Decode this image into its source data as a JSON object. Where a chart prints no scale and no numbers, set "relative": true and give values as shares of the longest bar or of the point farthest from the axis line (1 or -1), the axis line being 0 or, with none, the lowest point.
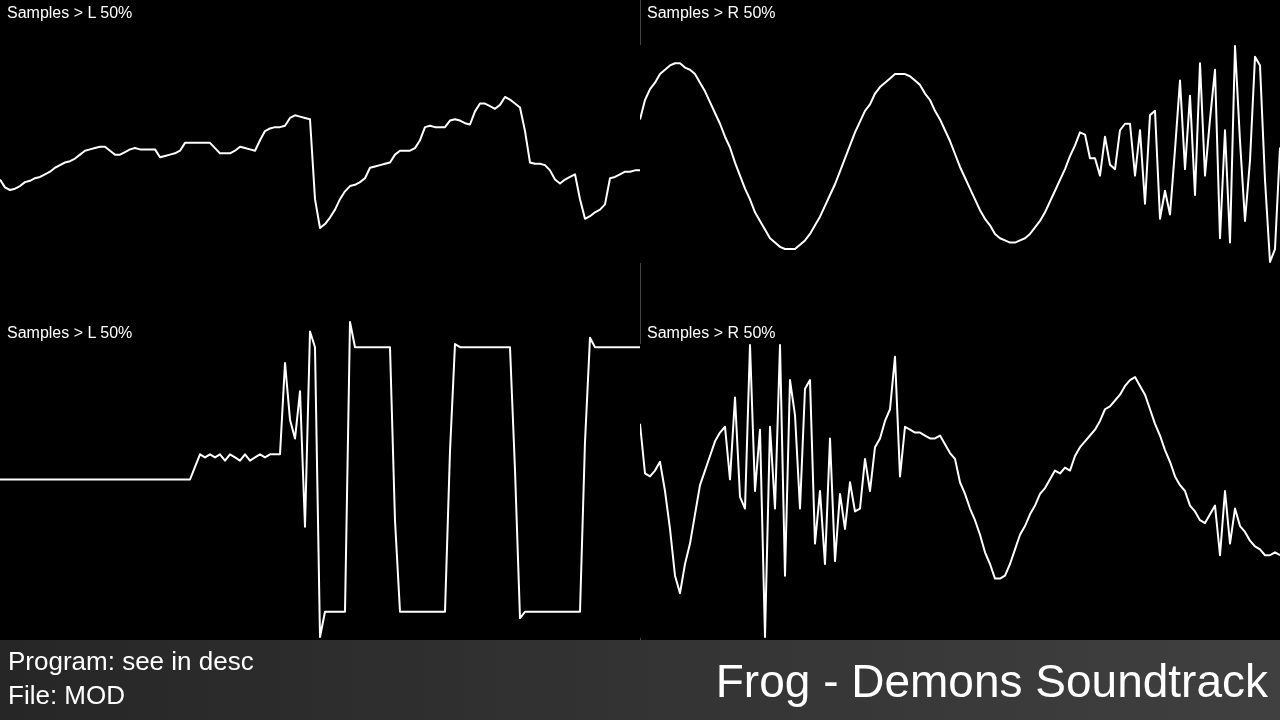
{
  "chart_data": [
    {
      "type": "line",
      "title": "Samples > L 50%",
      "relative": true,
      "categories": [
        null,
        null,
        null,
        null,
        null,
        null,
        null,
        null,
        null,
        null,
        null,
        null,
        null,
        null,
        null,
        null,
        null,
        null,
        null,
        null,
        null,
        null,
        null,
        null,
        null,
        null,
        null,
        null,
        null,
        null,
        null,
        null,
        null,
        null,
        null,
        null,
        null,
        null,
        null,
        null,
        null,
        null,
        null,
        null,
        null,
        null,
        null,
        null,
        null,
        null,
        null,
        null,
        null,
        null,
        null,
        null,
        null,
        null,
        null,
        null,
        null,
        null,
        null,
        null,
        null,
        null,
        null,
        null,
        null,
        null,
        null,
        null,
        null,
        null,
        null,
        null,
        null,
        null,
        null,
        null,
        null,
        null,
        null,
        null,
        null,
        null,
        null,
        null,
        null,
        null,
        null,
        null,
        null,
        null,
        null,
        null,
        null,
        null,
        null,
        null,
        null,
        null,
        null,
        null,
        null,
        null,
        null,
        null,
        null,
        null,
        null,
        null,
        null,
        null,
        null,
        null,
        null,
        null,
        null,
        null,
        null,
        null,
        null,
        null,
        null,
        null,
        null,
        null,
        null
      ],
      "series": [
        {
          "color": "#ffffff",
          "values": [
            0.37,
            0.31,
            0.29,
            0.3,
            0.32,
            0.35,
            0.36,
            0.38,
            0.39,
            0.41,
            0.43,
            0.46,
            0.48,
            0.5,
            0.51,
            0.53,
            0.56,
            0.59,
            0.6,
            0.61,
            0.62,
            0.62,
            0.59,
            0.56,
            0.56,
            0.58,
            0.6,
            0.61,
            0.6,
            0.6,
            0.6,
            0.6,
            0.54,
            0.55,
            0.56,
            0.57,
            0.59,
            0.65,
            0.65,
            0.65,
            0.65,
            0.65,
            0.65,
            0.61,
            0.57,
            0.57,
            0.57,
            0.59,
            0.62,
            0.61,
            0.6,
            0.59,
            0.67,
            0.74,
            0.76,
            0.77,
            0.77,
            0.78,
            0.84,
            0.86,
            0.85,
            0.84,
            0.83,
            0.22,
            0,
            0.03,
            0.08,
            0.14,
            0.22,
            0.28,
            0.32,
            0.33,
            0.35,
            0.38,
            0.46,
            0.47,
            0.48,
            0.49,
            0.5,
            0.56,
            0.59,
            0.59,
            0.59,
            0.61,
            0.67,
            0.77,
            0.78,
            0.77,
            0.77,
            0.77,
            0.82,
            0.83,
            0.82,
            0.8,
            0.79,
            0.89,
            0.95,
            0.95,
            0.93,
            0.91,
            0.94,
            1,
            0.98,
            0.95,
            0.92,
            0.74,
            0.5,
            0.49,
            0.49,
            0.48,
            0.44,
            0.37,
            0.34,
            0.37,
            0.39,
            0.41,
            0.22,
            0.07,
            0.09,
            0.12,
            0.14,
            0.18,
            0.38,
            0.39,
            0.41,
            0.43,
            0.43,
            0.44,
            0.44
          ]
        }
      ]
    },
    {
      "type": "line",
      "title": "Samples > R 50%",
      "relative": true,
      "categories": [
        null,
        null,
        null,
        null,
        null,
        null,
        null,
        null,
        null,
        null,
        null,
        null,
        null,
        null,
        null,
        null,
        null,
        null,
        null,
        null,
        null,
        null,
        null,
        null,
        null,
        null,
        null,
        null,
        null,
        null,
        null,
        null,
        null,
        null,
        null,
        null,
        null,
        null,
        null,
        null,
        null,
        null,
        null,
        null,
        null,
        null,
        null,
        null,
        null,
        null,
        null,
        null,
        null,
        null,
        null,
        null,
        null,
        null,
        null,
        null,
        null,
        null,
        null,
        null,
        null,
        null,
        null,
        null,
        null,
        null,
        null,
        null,
        null,
        null,
        null,
        null,
        null,
        null,
        null,
        null,
        null,
        null,
        null,
        null,
        null,
        null,
        null,
        null,
        null,
        null,
        null,
        null,
        null,
        null,
        null,
        null,
        null,
        null,
        null,
        null,
        null,
        null,
        null,
        null,
        null,
        null,
        null,
        null,
        null,
        null,
        null,
        null,
        null,
        null,
        null,
        null,
        null,
        null,
        null,
        null,
        null,
        null,
        null,
        null,
        null,
        null,
        null,
        null,
        null
      ],
      "series": [
        {
          "color": "#ffffff",
          "values": [
            0.66,
            0.75,
            0.8,
            0.83,
            0.87,
            0.89,
            0.91,
            0.92,
            0.92,
            0.9,
            0.89,
            0.87,
            0.83,
            0.79,
            0.74,
            0.69,
            0.64,
            0.58,
            0.53,
            0.46,
            0.4,
            0.34,
            0.29,
            0.23,
            0.19,
            0.15,
            0.11,
            0.09,
            0.07,
            0.06,
            0.06,
            0.06,
            0.08,
            0.1,
            0.13,
            0.17,
            0.21,
            0.26,
            0.31,
            0.36,
            0.42,
            0.48,
            0.54,
            0.6,
            0.65,
            0.7,
            0.73,
            0.78,
            0.81,
            0.83,
            0.85,
            0.87,
            0.87,
            0.87,
            0.86,
            0.84,
            0.82,
            0.78,
            0.75,
            0.7,
            0.66,
            0.61,
            0.56,
            0.5,
            0.44,
            0.39,
            0.34,
            0.29,
            0.24,
            0.2,
            0.17,
            0.13,
            0.11,
            0.1,
            0.09,
            0.09,
            0.1,
            0.11,
            0.13,
            0.16,
            0.19,
            0.23,
            0.28,
            0.33,
            0.38,
            0.43,
            0.49,
            0.54,
            0.6,
            0.59,
            0.48,
            0.48,
            0.4,
            0.58,
            0.45,
            0.43,
            0.61,
            0.64,
            0.64,
            0.4,
            0.61,
            0.27,
            0.68,
            0.7,
            0.2,
            0.33,
            0.22,
            0.52,
            0.84,
            0.43,
            0.77,
            0.31,
            0.92,
            0.4,
            0.66,
            0.89,
            0.11,
            0.61,
            0.09,
            1,
            0.56,
            0.19,
            0.47,
            0.95,
            0.91,
            0.38,
            0,
            0.06,
            0.53
          ]
        }
      ]
    },
    {
      "type": "line",
      "title": "Samples > L 50%",
      "relative": true,
      "categories": [
        null,
        null,
        null,
        null,
        null,
        null,
        null,
        null,
        null,
        null,
        null,
        null,
        null,
        null,
        null,
        null,
        null,
        null,
        null,
        null,
        null,
        null,
        null,
        null,
        null,
        null,
        null,
        null,
        null,
        null,
        null,
        null,
        null,
        null,
        null,
        null,
        null,
        null,
        null,
        null,
        null,
        null,
        null,
        null,
        null,
        null,
        null,
        null,
        null,
        null,
        null,
        null,
        null,
        null,
        null,
        null,
        null,
        null,
        null,
        null,
        null,
        null,
        null,
        null,
        null,
        null,
        null,
        null,
        null,
        null,
        null,
        null,
        null,
        null,
        null,
        null,
        null,
        null,
        null,
        null,
        null,
        null,
        null,
        null,
        null,
        null,
        null,
        null,
        null,
        null,
        null,
        null,
        null,
        null,
        null,
        null,
        null,
        null,
        null,
        null,
        null,
        null,
        null,
        null,
        null,
        null,
        null,
        null,
        null,
        null,
        null,
        null,
        null,
        null,
        null,
        null,
        null,
        null,
        null,
        null,
        null,
        null,
        null,
        null,
        null,
        null,
        null,
        null,
        null
      ],
      "series": [
        {
          "color": "#ffffff",
          "values": [
            0.5,
            0.5,
            0.5,
            0.5,
            0.5,
            0.5,
            0.5,
            0.5,
            0.5,
            0.5,
            0.5,
            0.5,
            0.5,
            0.5,
            0.5,
            0.5,
            0.5,
            0.5,
            0.5,
            0.5,
            0.5,
            0.5,
            0.5,
            0.5,
            0.5,
            0.5,
            0.5,
            0.5,
            0.5,
            0.5,
            0.5,
            0.5,
            0.5,
            0.5,
            0.5,
            0.5,
            0.5,
            0.5,
            0.5,
            0.54,
            0.58,
            0.57,
            0.58,
            0.57,
            0.58,
            0.56,
            0.58,
            0.57,
            0.56,
            0.58,
            0.56,
            0.57,
            0.58,
            0.57,
            0.58,
            0.58,
            0.58,
            0.87,
            0.69,
            0.63,
            0.78,
            0.35,
            0.97,
            0.92,
            0,
            0.08,
            0.08,
            0.08,
            0.08,
            0.08,
            1,
            0.92,
            0.92,
            0.92,
            0.92,
            0.92,
            0.92,
            0.92,
            0.92,
            0.37,
            0.08,
            0.08,
            0.08,
            0.08,
            0.08,
            0.08,
            0.08,
            0.08,
            0.08,
            0.08,
            0.59,
            0.93,
            0.92,
            0.92,
            0.92,
            0.92,
            0.92,
            0.92,
            0.92,
            0.92,
            0.92,
            0.92,
            0.92,
            0.53,
            0.06,
            0.08,
            0.08,
            0.08,
            0.08,
            0.08,
            0.08,
            0.08,
            0.08,
            0.08,
            0.08,
            0.08,
            0.08,
            0.62,
            0.95,
            0.92,
            0.92,
            0.92,
            0.92,
            0.92,
            0.92,
            0.92,
            0.92,
            0.92,
            0.92
          ]
        }
      ]
    },
    {
      "type": "line",
      "title": "Samples > R 50%",
      "relative": true,
      "categories": [
        null,
        null,
        null,
        null,
        null,
        null,
        null,
        null,
        null,
        null,
        null,
        null,
        null,
        null,
        null,
        null,
        null,
        null,
        null,
        null,
        null,
        null,
        null,
        null,
        null,
        null,
        null,
        null,
        null,
        null,
        null,
        null,
        null,
        null,
        null,
        null,
        null,
        null,
        null,
        null,
        null,
        null,
        null,
        null,
        null,
        null,
        null,
        null,
        null,
        null,
        null,
        null,
        null,
        null,
        null,
        null,
        null,
        null,
        null,
        null,
        null,
        null,
        null,
        null,
        null,
        null,
        null,
        null,
        null,
        null,
        null,
        null,
        null,
        null,
        null,
        null,
        null,
        null,
        null,
        null,
        null,
        null,
        null,
        null,
        null,
        null,
        null,
        null,
        null,
        null,
        null,
        null,
        null,
        null,
        null,
        null,
        null,
        null,
        null,
        null,
        null,
        null,
        null,
        null,
        null,
        null,
        null,
        null,
        null,
        null,
        null,
        null,
        null,
        null,
        null,
        null,
        null,
        null,
        null,
        null,
        null,
        null,
        null,
        null,
        null,
        null,
        null,
        null,
        null
      ],
      "series": [
        {
          "color": "#ffffff",
          "values": [
            0.73,
            0.56,
            0.55,
            0.57,
            0.6,
            0.5,
            0.37,
            0.21,
            0.15,
            0.25,
            0.32,
            0.42,
            0.52,
            0.57,
            0.62,
            0.67,
            0.7,
            0.72,
            0.54,
            0.82,
            0.48,
            0.44,
            1,
            0.5,
            0.71,
            0,
            0.72,
            0.44,
            1,
            0.21,
            0.88,
            0.76,
            0.44,
            0.85,
            0.88,
            0.32,
            0.5,
            0.25,
            0.68,
            0.26,
            0.49,
            0.37,
            0.53,
            0.43,
            0.44,
            0.61,
            0.5,
            0.65,
            0.68,
            0.74,
            0.78,
            0.96,
            0.55,
            0.72,
            0.71,
            0.7,
            0.7,
            0.69,
            0.68,
            0.68,
            0.69,
            0.66,
            0.63,
            0.61,
            0.53,
            0.49,
            0.44,
            0.4,
            0.35,
            0.29,
            0.25,
            0.2,
            0.2,
            0.21,
            0.25,
            0.3,
            0.35,
            0.38,
            0.42,
            0.45,
            0.49,
            0.51,
            0.54,
            0.57,
            0.56,
            0.58,
            0.57,
            0.62,
            0.65,
            0.67,
            0.69,
            0.71,
            0.74,
            0.78,
            0.79,
            0.81,
            0.83,
            0.86,
            0.88,
            0.89,
            0.86,
            0.83,
            0.78,
            0.73,
            0.69,
            0.64,
            0.6,
            0.55,
            0.52,
            0.5,
            0.45,
            0.43,
            0.4,
            0.39,
            0.42,
            0.45,
            0.28,
            0.5,
            0.32,
            0.44,
            0.38,
            0.36,
            0.33,
            0.31,
            0.3,
            0.28,
            0.28,
            0.29,
            0.28
          ]
        }
      ]
    },
    {
      "type": "other",
      "title": "Frog - Demons Soundtrack",
      "annotations": [
        "Program: see in desc",
        "File: MOD"
      ]
    }
  ]
}
